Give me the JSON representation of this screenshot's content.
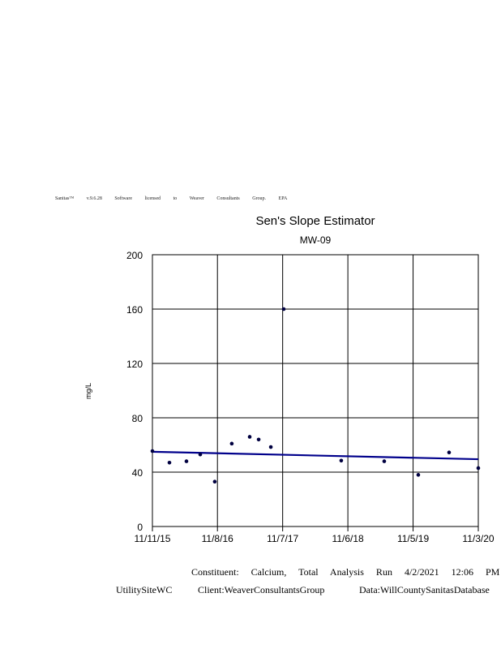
{
  "license_text": "Sanitas™ v.9.6.28 Software licensed to Weaver Consultants Group. EPA",
  "footer": {
    "line1": "Constituent: Calcium, Total Analysis Run 4/2/2021 12:06 PM",
    "site": "UtilitySiteWC",
    "client": "Client:WeaverConsultantsGroup",
    "data": "Data:WillCountySanitasDatabase"
  },
  "chart_data": {
    "type": "scatter",
    "title": "Sen's Slope Estimator",
    "subtitle": "MW-09",
    "xlabel": "",
    "ylabel": "mg/L",
    "xlim": [
      "2015-11-11",
      "2020-11-03"
    ],
    "ylim": [
      0,
      200
    ],
    "x_ticks": [
      {
        "date": "2015-11-11",
        "label": "11/11/15"
      },
      {
        "date": "2016-11-08",
        "label": "11/8/16"
      },
      {
        "date": "2017-11-07",
        "label": "11/7/17"
      },
      {
        "date": "2018-11-06",
        "label": "11/6/18"
      },
      {
        "date": "2019-11-05",
        "label": "11/5/19"
      },
      {
        "date": "2020-11-03",
        "label": "11/3/20"
      }
    ],
    "y_ticks": [
      0,
      40,
      80,
      120,
      160,
      200
    ],
    "grid": true,
    "series": [
      {
        "points": [
          {
            "x": "2015-11-11",
            "y": 55.5
          },
          {
            "x": "2016-02-14",
            "y": 47
          },
          {
            "x": "2016-05-19",
            "y": 48
          },
          {
            "x": "2016-08-04",
            "y": 53
          },
          {
            "x": "2016-10-24",
            "y": 33
          },
          {
            "x": "2017-01-27",
            "y": 61
          },
          {
            "x": "2017-05-07",
            "y": 66
          },
          {
            "x": "2017-06-26",
            "y": 64
          },
          {
            "x": "2017-09-02",
            "y": 58.5
          },
          {
            "x": "2017-11-13",
            "y": 160
          },
          {
            "x": "2018-09-30",
            "y": 48.5
          },
          {
            "x": "2019-05-28",
            "y": 48
          },
          {
            "x": "2019-12-04",
            "y": 38
          },
          {
            "x": "2020-05-24",
            "y": 54.5
          },
          {
            "x": "2020-11-03",
            "y": 43
          }
        ],
        "color": "#000040"
      }
    ],
    "trend_line": {
      "start": {
        "x": "2015-11-11",
        "y": 55
      },
      "end": {
        "x": "2020-11-03",
        "y": 49.5
      },
      "color": "#00008b"
    }
  }
}
